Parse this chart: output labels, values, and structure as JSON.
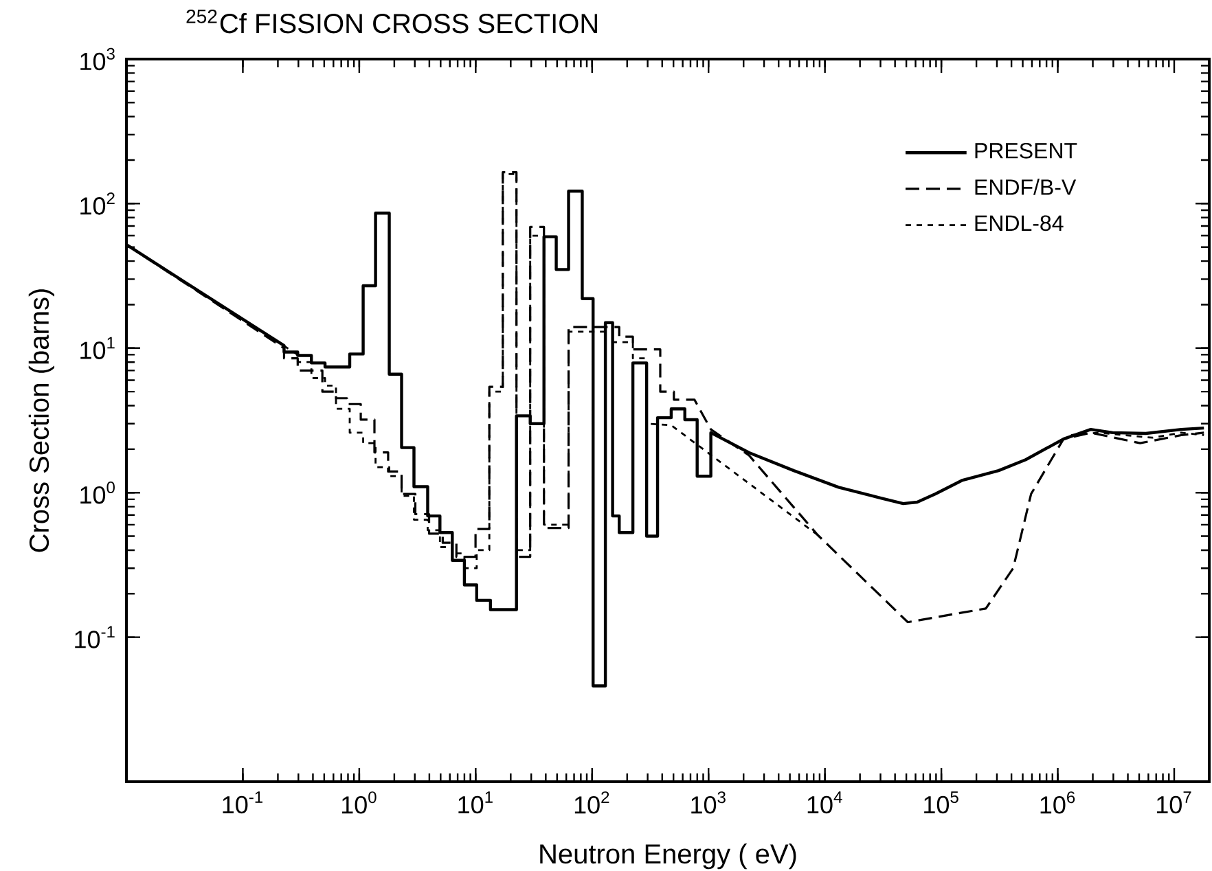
{
  "chart_data": {
    "type": "line",
    "title": "$^{252}$Cf FISSION CROSS SECTION",
    "xlabel": "Neutron Energy ( eV)",
    "ylabel": "Cross Section (barns)",
    "log": "xy",
    "xlim": [
      0.01,
      20000000
    ],
    "ylim": [
      0.01,
      1000
    ],
    "xticks": [
      {
        "value": 0.1,
        "label": "10$^{-1}$"
      },
      {
        "value": 1,
        "label": "10$^{0}$"
      },
      {
        "value": 10,
        "label": "10$^{1}$"
      },
      {
        "value": 100,
        "label": "10$^{2}$"
      },
      {
        "value": 1000,
        "label": "10$^{3}$"
      },
      {
        "value": 10000,
        "label": "10$^{4}$"
      },
      {
        "value": 100000,
        "label": "10$^{5}$"
      },
      {
        "value": 1000000,
        "label": "10$^{6}$"
      },
      {
        "value": 10000000,
        "label": "10$^{7}$"
      }
    ],
    "yticks": [
      {
        "value": 0.1,
        "label": "10$^{-1}$"
      },
      {
        "value": 1,
        "label": "10$^{0}$"
      },
      {
        "value": 10,
        "label": "10$^{1}$"
      },
      {
        "value": 100,
        "label": "10$^{2}$"
      },
      {
        "value": 1000,
        "label": "10$^{3}$"
      }
    ],
    "legend": "top right",
    "grid": false,
    "marker": "none",
    "series": [
      {
        "name": "PRESENT",
        "color": "#000000",
        "line_style": "solid",
        "x": [
          0.01,
          0.226,
          0.226,
          0.296,
          0.296,
          0.388,
          0.388,
          0.508,
          0.508,
          0.828,
          0.828,
          1.08,
          1.08,
          1.38,
          1.38,
          1.81,
          1.81,
          2.31,
          2.31,
          2.95,
          2.95,
          3.87,
          3.87,
          4.93,
          4.93,
          6.3,
          6.3,
          8.0,
          8.0,
          10.2,
          10.2,
          13.4,
          13.4,
          22.4,
          22.4,
          29.4,
          29.4,
          38.6,
          38.6,
          49.2,
          49.2,
          62.8,
          62.8,
          82.3,
          82.3,
          102,
          102,
          130,
          130,
          150,
          150,
          171,
          171,
          224,
          224,
          294,
          294,
          365,
          365,
          478,
          478,
          626,
          626,
          799,
          799,
          1047,
          1047,
          2230,
          5400,
          13100,
          29800,
          47000,
          62000,
          89000,
          152000,
          310000,
          530000,
          1120000,
          1920000,
          2960000,
          5700000,
          11500000,
          18000000
        ],
        "values": [
          52,
          10.4,
          9.4,
          9.4,
          8.9,
          8.9,
          7.9,
          7.9,
          7.4,
          7.4,
          9.1,
          9.1,
          27,
          27,
          86,
          86,
          6.6,
          6.6,
          2.05,
          2.05,
          1.1,
          1.1,
          0.69,
          0.69,
          0.53,
          0.53,
          0.34,
          0.34,
          0.23,
          0.23,
          0.18,
          0.18,
          0.155,
          0.155,
          3.4,
          3.4,
          3.0,
          3.0,
          59,
          59,
          35,
          35,
          122,
          122,
          22,
          22,
          0.046,
          0.046,
          15,
          15,
          0.69,
          0.69,
          0.53,
          0.53,
          7.9,
          7.9,
          0.5,
          0.5,
          3.3,
          3.3,
          3.8,
          3.8,
          3.2,
          3.2,
          1.3,
          1.3,
          2.6,
          1.89,
          1.42,
          1.09,
          0.92,
          0.84,
          0.86,
          0.98,
          1.22,
          1.42,
          1.69,
          2.35,
          2.74,
          2.6,
          2.57,
          2.74,
          2.8
        ]
      },
      {
        "name": "ENDF/B-V",
        "color": "#000000",
        "line_style": "dashed",
        "x": [
          0.01,
          0.226,
          0.226,
          0.296,
          0.296,
          0.482,
          0.482,
          0.631,
          0.631,
          0.784,
          0.784,
          1.03,
          1.03,
          1.35,
          1.35,
          1.77,
          1.77,
          2.31,
          2.31,
          3.03,
          3.03,
          3.98,
          3.98,
          5.21,
          5.21,
          6.83,
          6.83,
          9.97,
          9.97,
          13.1,
          13.1,
          17.1,
          17.1,
          22.4,
          22.4,
          29.4,
          29.4,
          38.6,
          38.6,
          62.8,
          62.8,
          171,
          171,
          224,
          224,
          385,
          385,
          504,
          504,
          757,
          1047,
          2230,
          8650,
          51500,
          241000,
          414000,
          590000,
          1120000,
          1920000,
          5100000,
          11500000,
          18000000
        ],
        "values": [
          52,
          10.0,
          8.5,
          8.5,
          7.0,
          7.0,
          5.0,
          5.0,
          4.5,
          4.5,
          4.1,
          4.1,
          3.2,
          3.2,
          1.9,
          1.9,
          1.4,
          1.4,
          0.98,
          0.98,
          0.71,
          0.71,
          0.52,
          0.52,
          0.45,
          0.45,
          0.36,
          0.36,
          0.56,
          0.56,
          5.4,
          5.4,
          165,
          165,
          0.36,
          0.36,
          69,
          69,
          0.57,
          0.57,
          14,
          14,
          12,
          12,
          9.8,
          9.8,
          5.0,
          5.0,
          4.4,
          4.4,
          2.74,
          1.81,
          0.51,
          0.127,
          0.158,
          0.3,
          0.98,
          2.35,
          2.6,
          2.2,
          2.5,
          2.6
        ]
      },
      {
        "name": "ENDL-84",
        "color": "#000000",
        "line_style": "dotted",
        "x": [
          0.01,
          0.296,
          0.296,
          0.388,
          0.388,
          0.508,
          0.508,
          0.631,
          0.631,
          0.828,
          0.828,
          1.08,
          1.08,
          1.38,
          1.38,
          1.81,
          1.81,
          2.31,
          2.31,
          2.95,
          2.95,
          3.87,
          3.87,
          4.93,
          4.93,
          6.3,
          6.3,
          8.0,
          8.0,
          10.2,
          10.2,
          13.1,
          13.1,
          17.1,
          17.1,
          22.4,
          22.4,
          29.4,
          29.4,
          38.6,
          38.6,
          62.8,
          62.8,
          130,
          130,
          224,
          224,
          294,
          294,
          478,
          8650,
          10000,
          1300000,
          2200000,
          6500000,
          11500000,
          18000000
        ],
        "values": [
          52,
          9.0,
          8.0,
          8.0,
          6.2,
          6.2,
          5.5,
          5.5,
          3.8,
          3.8,
          2.6,
          2.6,
          2.2,
          2.2,
          1.5,
          1.5,
          1.3,
          1.3,
          0.95,
          0.95,
          0.65,
          0.65,
          0.55,
          0.55,
          0.42,
          0.42,
          0.38,
          0.38,
          0.3,
          0.3,
          0.4,
          0.4,
          5.0,
          5.0,
          160,
          160,
          0.4,
          0.4,
          60,
          60,
          0.6,
          0.6,
          13,
          13,
          11,
          11,
          8.5,
          8.5,
          3.0,
          2.93,
          0.51,
          null,
          2.5,
          2.6,
          2.4,
          2.6,
          2.5
        ]
      }
    ]
  }
}
